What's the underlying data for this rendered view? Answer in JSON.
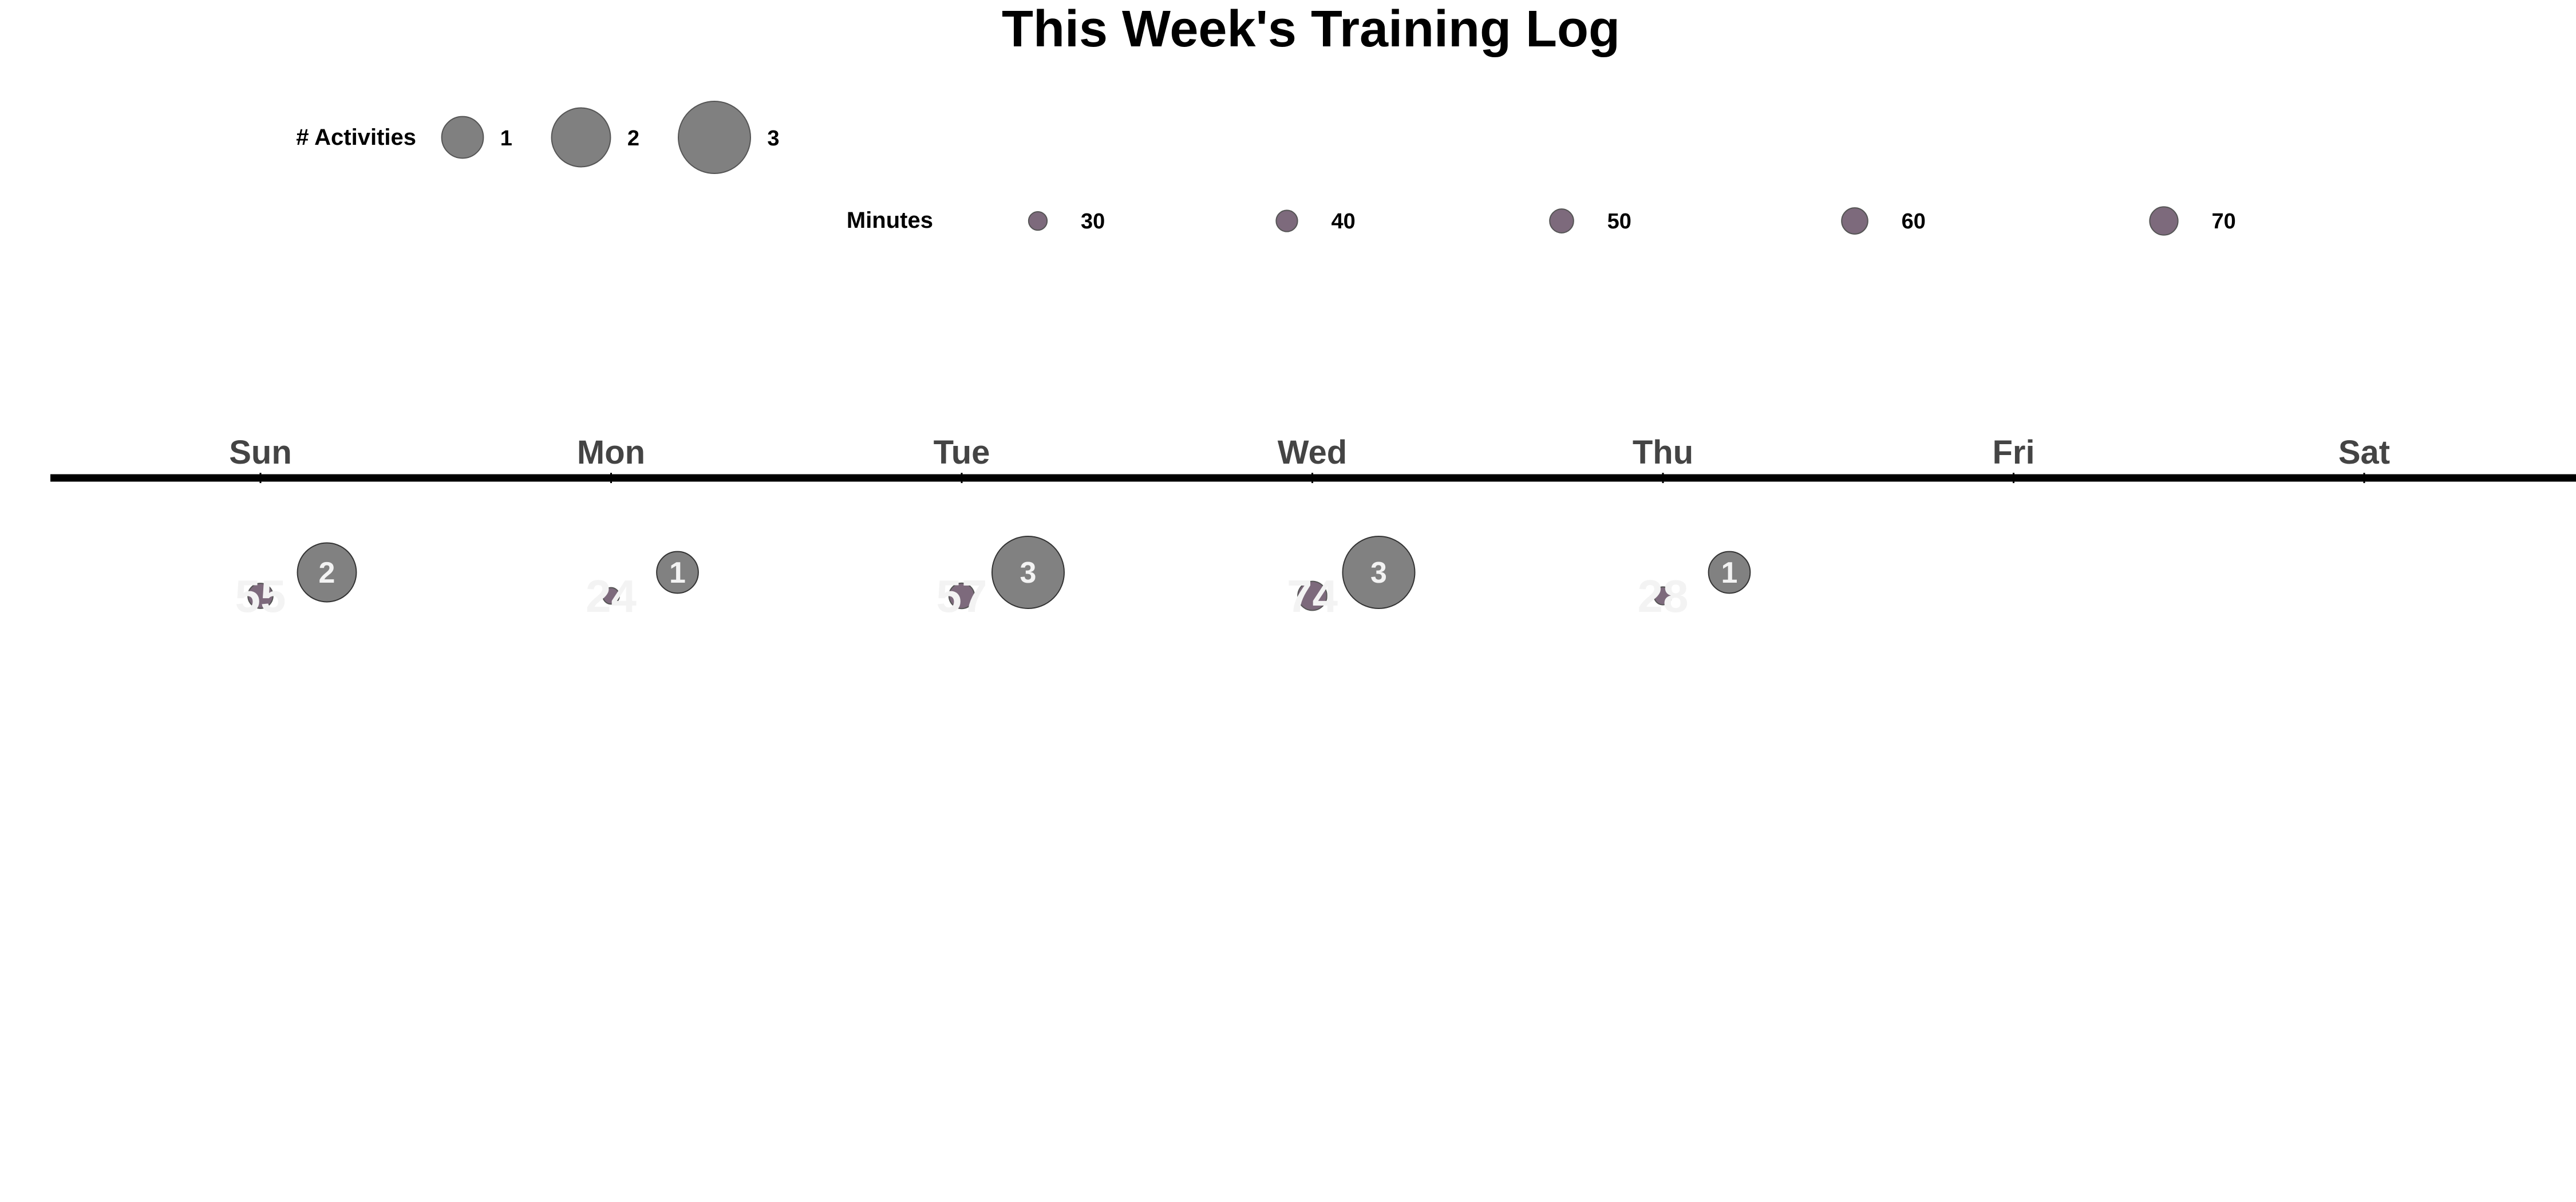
{
  "chart_data": {
    "type": "scatter",
    "title": "This Week's Training Log",
    "categories": [
      "Sun",
      "Mon",
      "Tue",
      "Wed",
      "Thu",
      "Fri",
      "Sat"
    ],
    "series": [
      {
        "name": "Minutes",
        "values": [
          55,
          24,
          57,
          74,
          28,
          null,
          null
        ]
      },
      {
        "name": "# Activities",
        "values": [
          2,
          1,
          3,
          3,
          1,
          null,
          null
        ]
      }
    ],
    "legend": {
      "activities": {
        "label": "# Activities",
        "values": [
          1,
          2,
          3
        ]
      },
      "minutes": {
        "label": "Minutes",
        "values": [
          30,
          40,
          50,
          60,
          70
        ]
      }
    },
    "legend_placement": "top",
    "grid": false,
    "colors": {
      "minutes_bubble": "#7d6a7c",
      "activities_bubble": "#333333",
      "bubble_label": "#f3f3f3",
      "day_label": "#444444",
      "axis_line": "#000000"
    }
  }
}
